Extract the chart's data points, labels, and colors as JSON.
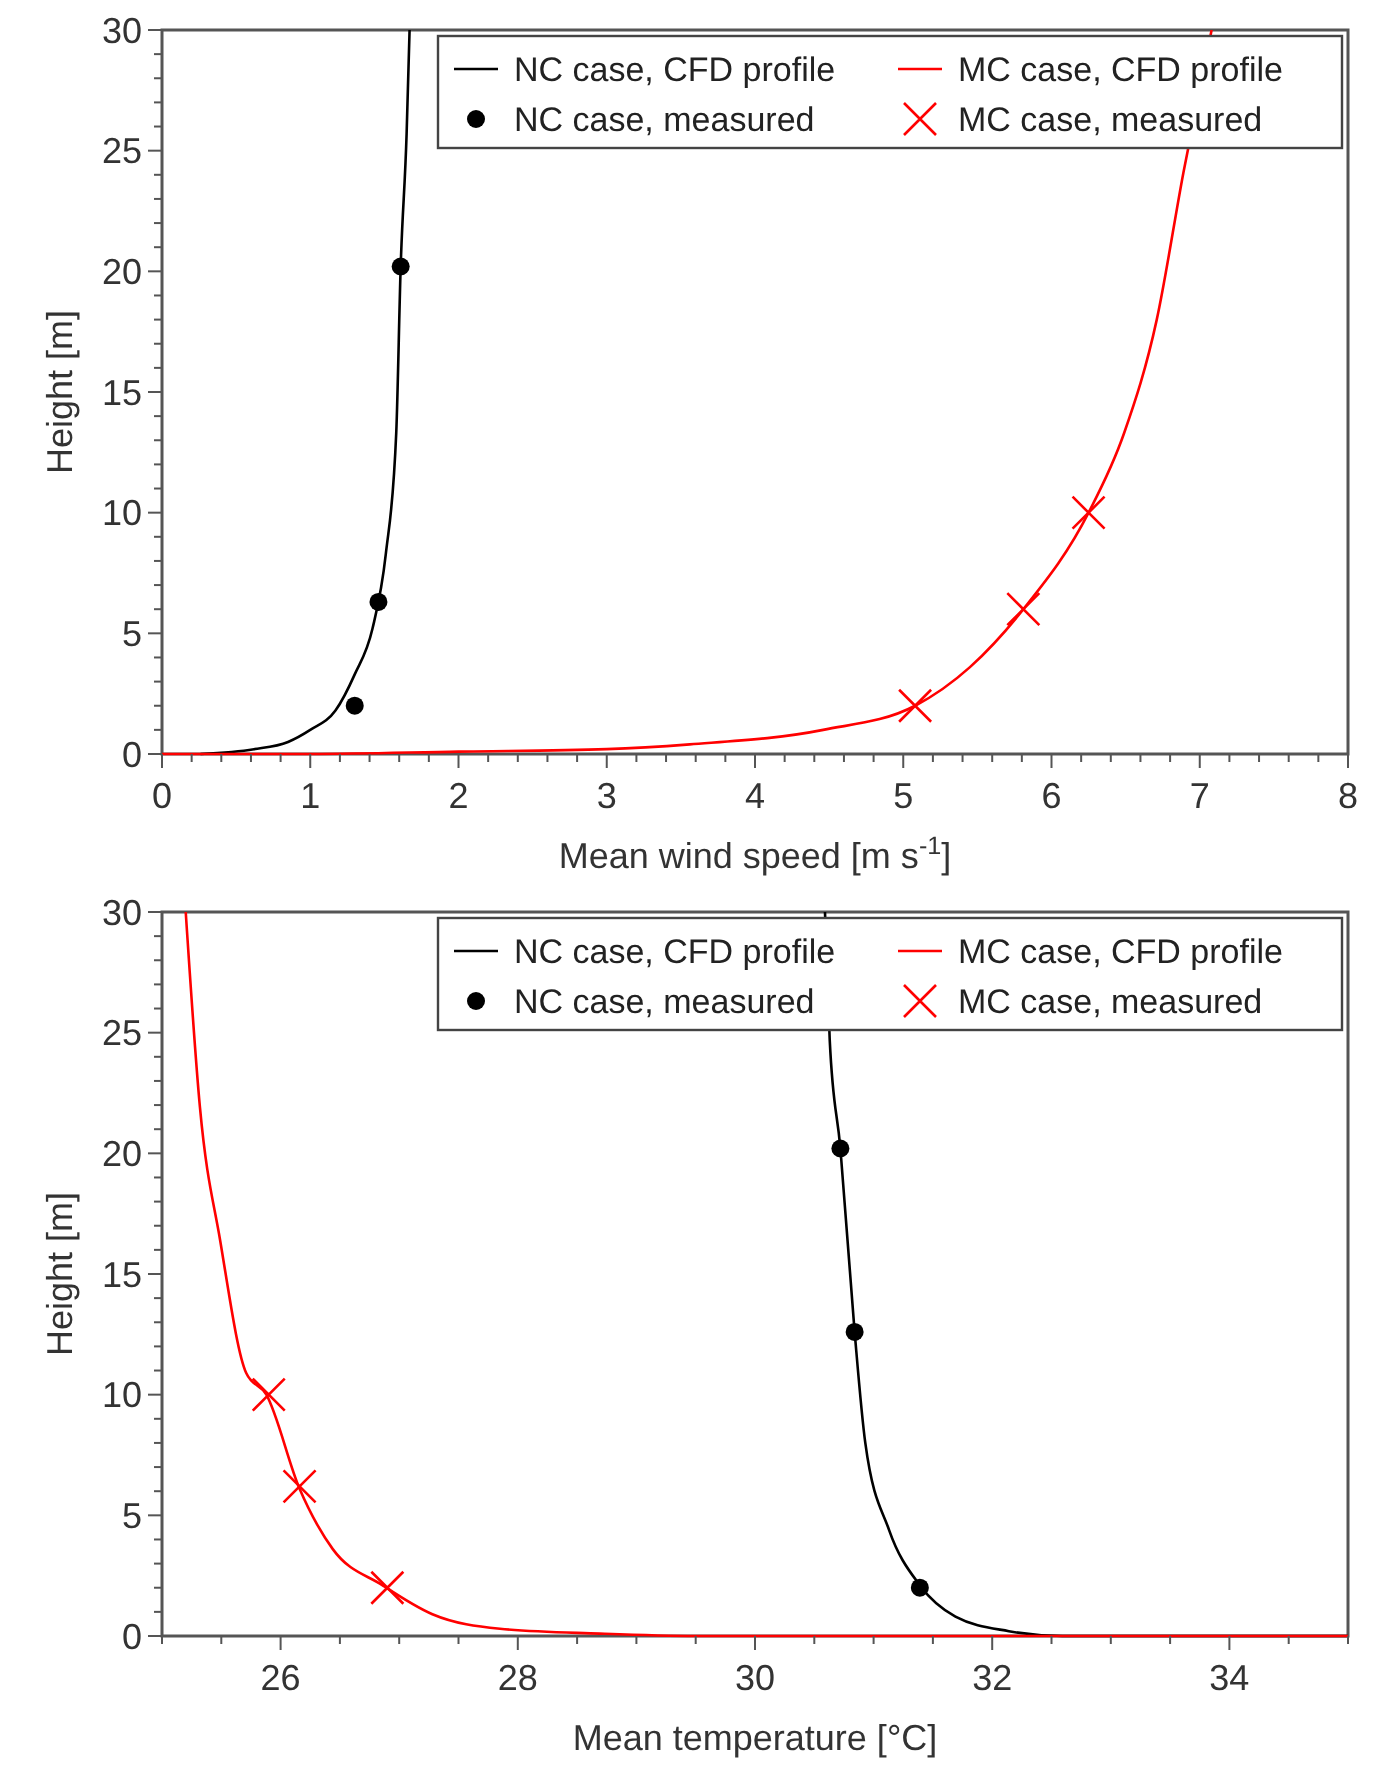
{
  "chart_data": [
    {
      "type": "line",
      "xlabel": "Mean wind speed [m s$^{-1}$]",
      "ylabel": "Height [m]",
      "xlim": [
        0,
        8
      ],
      "ylim": [
        0,
        30
      ],
      "xticks": [
        0,
        {
          "value": 0.2,
          "label": null
        },
        {
          "value": 0.4,
          "label": null
        },
        {
          "value": 0.6,
          "label": null
        },
        {
          "value": 0.8,
          "label": null
        },
        1,
        {
          "value": 1.2,
          "label": null
        },
        {
          "value": 1.4,
          "label": null
        },
        {
          "value": 1.6,
          "label": null
        },
        {
          "value": 1.8,
          "label": null
        },
        2,
        {
          "value": 2.2,
          "label": null
        },
        {
          "value": 2.4,
          "label": null
        },
        {
          "value": 2.6,
          "label": null
        },
        {
          "value": 2.8,
          "label": null
        },
        3,
        {
          "value": 3.2,
          "label": null
        },
        {
          "value": 3.4,
          "label": null
        },
        {
          "value": 3.6,
          "label": null
        },
        {
          "value": 3.8,
          "label": null
        },
        4,
        {
          "value": 4.2,
          "label": null
        },
        {
          "value": 4.4,
          "label": null
        },
        {
          "value": 4.6,
          "label": null
        },
        {
          "value": 4.8,
          "label": null
        },
        5,
        {
          "value": 5.2,
          "label": null
        },
        {
          "value": 5.4,
          "label": null
        },
        {
          "value": 5.6,
          "label": null
        },
        {
          "value": 5.8,
          "label": null
        },
        6,
        {
          "value": 6.2,
          "label": null
        },
        {
          "value": 6.4,
          "label": null
        },
        {
          "value": 6.6,
          "label": null
        },
        {
          "value": 6.8,
          "label": null
        },
        7,
        {
          "value": 7.2,
          "label": null
        },
        {
          "value": 7.4,
          "label": null
        },
        {
          "value": 7.6,
          "label": null
        },
        {
          "value": 7.8,
          "label": null
        },
        8
      ],
      "yticks": [
        0,
        {
          "value": 1,
          "label": null
        },
        {
          "value": 2,
          "label": null
        },
        {
          "value": 3,
          "label": null
        },
        {
          "value": 4,
          "label": null
        },
        5,
        {
          "value": 6,
          "label": null
        },
        {
          "value": 7,
          "label": null
        },
        {
          "value": 8,
          "label": null
        },
        {
          "value": 9,
          "label": null
        },
        10,
        {
          "value": 11,
          "label": null
        },
        {
          "value": 12,
          "label": null
        },
        {
          "value": 13,
          "label": null
        },
        {
          "value": 14,
          "label": null
        },
        15,
        {
          "value": 16,
          "label": null
        },
        {
          "value": 17,
          "label": null
        },
        {
          "value": 18,
          "label": null
        },
        {
          "value": 19,
          "label": null
        },
        20,
        {
          "value": 21,
          "label": null
        },
        {
          "value": 22,
          "label": null
        },
        {
          "value": 23,
          "label": null
        },
        {
          "value": 24,
          "label": null
        },
        25,
        {
          "value": 26,
          "label": null
        },
        {
          "value": 27,
          "label": null
        },
        {
          "value": 28,
          "label": null
        },
        {
          "value": 29,
          "label": null
        },
        30
      ],
      "legend": "top right",
      "grid": false,
      "series": [
        {
          "name": "NC case, CFD profile",
          "color": "#000000",
          "marker": "none",
          "x": [
            0.26,
            0.62,
            0.85,
            1.0,
            1.17,
            1.3,
            1.42,
            1.51,
            1.58,
            1.61,
            1.65,
            1.67
          ],
          "values": [
            0,
            0.2,
            0.5,
            1,
            1.8,
            3.3,
            5.2,
            8.3,
            13.3,
            20.2,
            25.7,
            30
          ]
        },
        {
          "name": "NC case, measured",
          "type": "scatter",
          "color": "#000000",
          "marker": "circle",
          "x": [
            1.3,
            1.46,
            1.61
          ],
          "values": [
            2,
            6.3,
            20.2
          ]
        },
        {
          "name": "MC case, CFD profile",
          "color": "#ff0000",
          "marker": "none",
          "x": [
            0,
            1,
            2,
            3,
            3.56,
            4.46,
            5.08,
            5.45,
            5.81,
            6.25,
            6.49,
            6.71,
            6.89,
            7.08
          ],
          "values": [
            0,
            0,
            0.1,
            0.2,
            0.4,
            1.0,
            2.0,
            3.6,
            6.0,
            10.0,
            13.3,
            18.0,
            24.1,
            30
          ]
        },
        {
          "name": "MC case, measured",
          "type": "scatter",
          "color": "#ff0000",
          "marker": "cross",
          "x": [
            5.08,
            5.81,
            6.25
          ],
          "values": [
            2,
            6,
            10
          ]
        }
      ]
    },
    {
      "type": "line",
      "xlabel": "Mean temperature [°C]",
      "ylabel": "Height [m]",
      "xlim": [
        25,
        35
      ],
      "ylim": [
        0,
        30
      ],
      "xticks": [
        {
          "value": 25,
          "label": null
        },
        {
          "value": 25.5,
          "label": null
        },
        26,
        {
          "value": 26.5,
          "label": null
        },
        {
          "value": 27,
          "label": null
        },
        {
          "value": 27.5,
          "label": null
        },
        28,
        {
          "value": 28.5,
          "label": null
        },
        {
          "value": 29,
          "label": null
        },
        {
          "value": 29.5,
          "label": null
        },
        30,
        {
          "value": 30.5,
          "label": null
        },
        {
          "value": 31,
          "label": null
        },
        {
          "value": 31.5,
          "label": null
        },
        32,
        {
          "value": 32.5,
          "label": null
        },
        {
          "value": 33,
          "label": null
        },
        {
          "value": 33.5,
          "label": null
        },
        34,
        {
          "value": 34.5,
          "label": null
        },
        {
          "value": 35,
          "label": null
        }
      ],
      "yticks": [
        0,
        {
          "value": 1,
          "label": null
        },
        {
          "value": 2,
          "label": null
        },
        {
          "value": 3,
          "label": null
        },
        {
          "value": 4,
          "label": null
        },
        5,
        {
          "value": 6,
          "label": null
        },
        {
          "value": 7,
          "label": null
        },
        {
          "value": 8,
          "label": null
        },
        {
          "value": 9,
          "label": null
        },
        10,
        {
          "value": 11,
          "label": null
        },
        {
          "value": 12,
          "label": null
        },
        {
          "value": 13,
          "label": null
        },
        {
          "value": 14,
          "label": null
        },
        15,
        {
          "value": 16,
          "label": null
        },
        {
          "value": 17,
          "label": null
        },
        {
          "value": 18,
          "label": null
        },
        {
          "value": 19,
          "label": null
        },
        20,
        {
          "value": 21,
          "label": null
        },
        {
          "value": 22,
          "label": null
        },
        {
          "value": 23,
          "label": null
        },
        {
          "value": 24,
          "label": null
        },
        25,
        {
          "value": 26,
          "label": null
        },
        {
          "value": 27,
          "label": null
        },
        {
          "value": 28,
          "label": null
        },
        {
          "value": 29,
          "label": null
        },
        30
      ],
      "legend": "top right",
      "grid": false,
      "series": [
        {
          "name": "NC case, CFD profile",
          "color": "#000000",
          "marker": "none",
          "x": [
            30.59,
            30.63,
            30.72,
            30.84,
            30.93,
            31.13,
            31.39,
            31.69,
            32.14,
            32.59,
            33.2,
            35
          ],
          "values": [
            30,
            24.7,
            20.2,
            12.6,
            8.0,
            4.4,
            2.1,
            0.8,
            0.2,
            0,
            0,
            0
          ]
        },
        {
          "name": "NC case, measured",
          "type": "scatter",
          "color": "#000000",
          "marker": "circle",
          "x": [
            30.72,
            30.84,
            31.39
          ],
          "values": [
            20.2,
            12.6,
            2
          ]
        },
        {
          "name": "MC case, CFD profile",
          "color": "#ff0000",
          "marker": "none",
          "x": [
            25.2,
            25.32,
            25.49,
            25.71,
            25.88,
            26.16,
            26.44,
            26.86,
            27.28,
            27.85,
            28.69,
            29.5,
            35
          ],
          "values": [
            30,
            21.9,
            16.4,
            10.9,
            10.0,
            6.1,
            3.6,
            2.1,
            0.9,
            0.3,
            0.1,
            0,
            0
          ]
        },
        {
          "name": "MC case, measured",
          "type": "scatter",
          "color": "#ff0000",
          "marker": "cross",
          "x": [
            25.9,
            26.16,
            26.9
          ],
          "values": [
            10,
            6.2,
            2
          ]
        }
      ]
    }
  ]
}
